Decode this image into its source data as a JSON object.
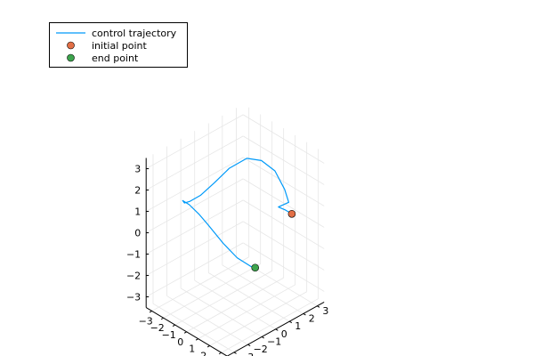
{
  "chart_data": {
    "type": "line",
    "projection": "3d",
    "legend_position": "top-left",
    "grid": true,
    "axes": {
      "x": {
        "range": [
          -3.5,
          3.5
        ],
        "ticks": [
          -3,
          -2,
          -1,
          0,
          1,
          2,
          3
        ],
        "tick_labels": [
          "−3",
          "−2",
          "−1",
          "0",
          "1",
          "2",
          "3"
        ]
      },
      "y": {
        "range": [
          -3.5,
          3.5
        ],
        "ticks": [
          -3,
          -2,
          -1,
          0,
          1,
          2,
          3
        ],
        "tick_labels": [
          "−3",
          "−2",
          "−1",
          "0",
          "1",
          "2",
          "3"
        ]
      },
      "z": {
        "range": [
          -3.5,
          3.5
        ],
        "ticks": [
          -3,
          -2,
          -1,
          0,
          1,
          2,
          3
        ],
        "tick_labels": [
          "−3",
          "−2",
          "−1",
          "0",
          "1",
          "2",
          "3"
        ]
      }
    },
    "series": [
      {
        "name": "control trajectory",
        "kind": "line",
        "color": "#009af9",
        "points": [
          [
            2.6,
            1.92,
            0.91
          ],
          [
            2.3,
            1.72,
            1.06
          ],
          [
            1.8,
            1.62,
            1.08
          ],
          [
            2.2,
            2.03,
            1.28
          ],
          [
            1.6,
            2.24,
            1.61
          ],
          [
            0.6,
            2.37,
            2.11
          ],
          [
            -0.4,
            2.23,
            2.32
          ],
          [
            -1.3,
            1.93,
            2.24
          ],
          [
            -2.1,
            1.34,
            1.73
          ],
          [
            -2.6,
            0.65,
            1.12
          ],
          [
            -2.95,
            -0.04,
            0.68
          ],
          [
            -3.2,
            -0.61,
            0.52
          ],
          [
            -3.25,
            -0.94,
            0.55
          ],
          [
            -3.25,
            -1.07,
            0.71
          ],
          [
            -3.05,
            -0.77,
            0.48
          ],
          [
            -2.7,
            -0.37,
            0.01
          ],
          [
            -2.2,
            -0.14,
            -0.4
          ],
          [
            -1.4,
            0.32,
            -1.2
          ],
          [
            -0.5,
            0.57,
            -1.67
          ],
          [
            0.8,
            0.48,
            -1.62
          ],
          [
            1.6,
            0.11,
            -1.28
          ]
        ]
      },
      {
        "name": "initial point",
        "kind": "scatter",
        "color": "#e26f46",
        "points": [
          [
            2.6,
            1.92,
            0.91
          ]
        ]
      },
      {
        "name": "end point",
        "kind": "scatter",
        "color": "#3da44d",
        "points": [
          [
            1.6,
            0.11,
            -1.28
          ]
        ]
      }
    ]
  }
}
